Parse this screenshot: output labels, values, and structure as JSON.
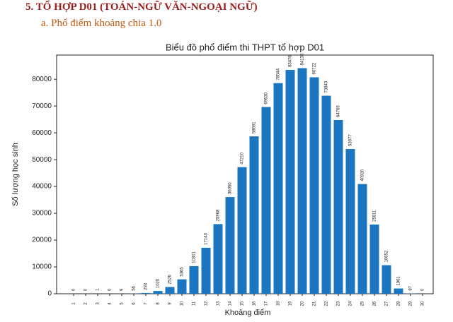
{
  "heading": "5. TỔ HỢP D01 (TOÁN-NGỮ VĂN-NGOẠI NGỮ)",
  "subheading": "a. Phổ điểm khoảng chia 1.0",
  "chart_data": {
    "type": "bar",
    "title": "Biểu đồ phổ điểm thi THPT tổ hợp D01",
    "x_label": "Khoảng điểm",
    "y_label": "Số lượng học sinh",
    "categories": [
      "1",
      "2",
      "3",
      "4",
      "5",
      "6",
      "7",
      "8",
      "9",
      "10",
      "11",
      "12",
      "13",
      "14",
      "15",
      "16",
      "17",
      "18",
      "19",
      "20",
      "21",
      "22",
      "23",
      "24",
      "25",
      "26",
      "27",
      "28",
      "29",
      "30"
    ],
    "values": [
      0,
      0,
      1,
      0,
      9,
      56,
      293,
      1020,
      2526,
      5365,
      10301,
      17143,
      25968,
      36050,
      47210,
      58691,
      69630,
      78544,
      83476,
      84135,
      80722,
      73843,
      64769,
      53977,
      40916,
      25811,
      10652,
      1961,
      87,
      0
    ],
    "color": "#1a76c0",
    "ylim": [
      0,
      89000
    ],
    "yticks": [
      0,
      10000,
      20000,
      30000,
      40000,
      50000,
      60000,
      70000,
      80000
    ]
  }
}
